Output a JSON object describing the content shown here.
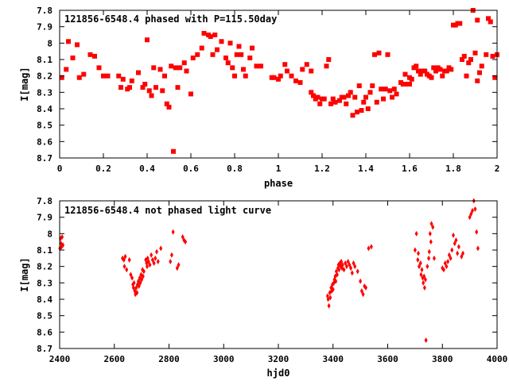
{
  "colors": {
    "points": "#ff0000",
    "axes": "#000000",
    "background": "#ffffff"
  },
  "chart_data": [
    {
      "type": "scatter",
      "title": "121856-6548.4 phased with P=115.50day",
      "xlabel": "phase",
      "ylabel": "I[mag]",
      "xlim": [
        0,
        2
      ],
      "ylim": [
        8.7,
        7.8
      ],
      "y_inverted": true,
      "grid": false,
      "marker": "filled-square",
      "x_ticks": [
        "0",
        "0.2",
        "0.4",
        "0.6",
        "0.8",
        "1",
        "1.2",
        "1.4",
        "1.6",
        "1.8",
        "2"
      ],
      "y_ticks": [
        "7.8",
        "7.9",
        "8",
        "8.1",
        "8.2",
        "8.3",
        "8.4",
        "8.5",
        "8.6",
        "8.7"
      ],
      "points": [
        [
          0.01,
          8.21
        ],
        [
          0.03,
          8.16
        ],
        [
          0.04,
          7.99
        ],
        [
          0.06,
          8.09
        ],
        [
          0.08,
          8.01
        ],
        [
          0.09,
          8.21
        ],
        [
          0.11,
          8.19
        ],
        [
          0.14,
          8.07
        ],
        [
          0.16,
          8.08
        ],
        [
          0.18,
          8.15
        ],
        [
          0.2,
          8.2
        ],
        [
          0.22,
          8.2
        ],
        [
          0.27,
          8.2
        ],
        [
          0.28,
          8.27
        ],
        [
          0.29,
          8.22
        ],
        [
          0.31,
          8.28
        ],
        [
          0.32,
          8.27
        ],
        [
          0.33,
          8.23
        ],
        [
          0.36,
          8.18
        ],
        [
          0.38,
          8.27
        ],
        [
          0.39,
          8.25
        ],
        [
          0.4,
          7.98
        ],
        [
          0.41,
          8.29
        ],
        [
          0.42,
          8.32
        ],
        [
          0.43,
          8.15
        ],
        [
          0.44,
          8.27
        ],
        [
          0.46,
          8.16
        ],
        [
          0.47,
          8.29
        ],
        [
          0.48,
          8.2
        ],
        [
          0.49,
          8.37
        ],
        [
          0.5,
          8.39
        ],
        [
          0.51,
          8.14
        ],
        [
          0.52,
          8.66
        ],
        [
          0.53,
          8.15
        ],
        [
          0.54,
          8.27
        ],
        [
          0.55,
          8.15
        ],
        [
          0.57,
          8.12
        ],
        [
          0.58,
          8.17
        ],
        [
          0.6,
          8.31
        ],
        [
          0.61,
          8.09
        ],
        [
          0.63,
          8.07
        ],
        [
          0.65,
          8.03
        ],
        [
          0.66,
          7.94
        ],
        [
          0.68,
          7.95
        ],
        [
          0.69,
          7.96
        ],
        [
          0.7,
          8.07
        ],
        [
          0.71,
          7.95
        ],
        [
          0.72,
          8.04
        ],
        [
          0.74,
          7.99
        ],
        [
          0.76,
          8.09
        ],
        [
          0.77,
          8.12
        ],
        [
          0.78,
          8.0
        ],
        [
          0.79,
          8.15
        ],
        [
          0.8,
          8.2
        ],
        [
          0.81,
          8.07
        ],
        [
          0.82,
          8.02
        ],
        [
          0.83,
          8.07
        ],
        [
          0.84,
          8.16
        ],
        [
          0.87,
          8.09
        ],
        [
          0.88,
          8.03
        ],
        [
          0.9,
          8.14
        ],
        [
          0.92,
          8.14
        ],
        [
          0.97,
          8.21
        ],
        [
          0.98,
          8.21
        ],
        [
          1.0,
          8.22
        ],
        [
          1.01,
          8.2
        ],
        [
          1.03,
          8.13
        ],
        [
          1.04,
          8.17
        ],
        [
          1.06,
          8.2
        ],
        [
          1.08,
          8.23
        ],
        [
          1.1,
          8.24
        ],
        [
          1.11,
          8.16
        ],
        [
          1.13,
          8.13
        ],
        [
          1.15,
          8.17
        ],
        [
          1.16,
          8.32
        ],
        [
          1.17,
          8.34
        ],
        [
          1.18,
          8.33
        ],
        [
          1.19,
          8.37
        ],
        [
          1.2,
          8.34
        ],
        [
          1.21,
          8.34
        ],
        [
          1.22,
          8.14
        ],
        [
          1.23,
          8.1
        ],
        [
          1.24,
          8.37
        ],
        [
          1.25,
          8.34
        ],
        [
          1.26,
          8.36
        ],
        [
          1.28,
          8.35
        ],
        [
          1.29,
          8.33
        ],
        [
          1.3,
          8.33
        ],
        [
          1.31,
          8.37
        ],
        [
          1.32,
          8.32
        ],
        [
          1.33,
          8.3
        ],
        [
          1.34,
          8.44
        ],
        [
          1.35,
          8.33
        ],
        [
          1.36,
          8.42
        ],
        [
          1.37,
          8.26
        ],
        [
          1.38,
          8.41
        ],
        [
          1.39,
          8.36
        ],
        [
          1.4,
          8.33
        ],
        [
          1.41,
          8.4
        ],
        [
          1.42,
          8.3
        ],
        [
          1.43,
          8.26
        ],
        [
          1.44,
          8.07
        ],
        [
          1.45,
          8.36
        ],
        [
          1.46,
          8.06
        ],
        [
          1.47,
          8.28
        ],
        [
          1.48,
          8.34
        ],
        [
          1.49,
          8.28
        ],
        [
          1.5,
          8.07
        ],
        [
          1.51,
          8.29
        ],
        [
          1.52,
          8.33
        ],
        [
          1.53,
          8.28
        ],
        [
          1.54,
          8.31
        ],
        [
          1.56,
          8.24
        ],
        [
          1.57,
          8.25
        ],
        [
          1.58,
          8.19
        ],
        [
          1.59,
          8.25
        ],
        [
          1.6,
          8.21
        ],
        [
          1.61,
          8.22
        ],
        [
          1.62,
          8.15
        ],
        [
          1.63,
          8.14
        ],
        [
          1.64,
          8.17
        ],
        [
          1.65,
          8.19
        ],
        [
          1.66,
          8.17
        ],
        [
          1.67,
          8.17
        ],
        [
          1.68,
          8.19
        ],
        [
          1.69,
          8.2
        ],
        [
          1.7,
          8.21
        ],
        [
          1.71,
          8.15
        ],
        [
          1.72,
          8.17
        ],
        [
          1.73,
          8.15
        ],
        [
          1.74,
          8.16
        ],
        [
          1.75,
          8.2
        ],
        [
          1.76,
          8.17
        ],
        [
          1.77,
          8.17
        ],
        [
          1.78,
          8.15
        ],
        [
          1.79,
          8.16
        ],
        [
          1.8,
          7.89
        ],
        [
          1.81,
          7.89
        ],
        [
          1.82,
          7.88
        ],
        [
          1.83,
          7.88
        ],
        [
          1.84,
          8.1
        ],
        [
          1.85,
          8.08
        ],
        [
          1.86,
          8.2
        ],
        [
          1.87,
          8.12
        ],
        [
          1.88,
          8.1
        ],
        [
          1.89,
          7.8
        ],
        [
          1.9,
          8.06
        ],
        [
          1.91,
          8.23
        ],
        [
          1.92,
          8.18
        ],
        [
          1.93,
          8.14
        ],
        [
          1.95,
          8.07
        ],
        [
          1.96,
          7.85
        ],
        [
          1.97,
          7.87
        ],
        [
          1.98,
          8.08
        ],
        [
          2.0,
          8.07
        ],
        [
          1.91,
          7.86
        ],
        [
          1.99,
          8.21
        ],
        [
          1.6,
          8.25
        ],
        [
          1.15,
          8.3
        ],
        [
          0.85,
          8.2
        ]
      ]
    },
    {
      "type": "scatter",
      "title": "121856-6548.4 not phased light curve",
      "xlabel": "hjd0",
      "ylabel": "I[mag]",
      "xlim": [
        2400,
        4000
      ],
      "ylim": [
        8.7,
        7.8
      ],
      "y_inverted": true,
      "grid": false,
      "marker": "filled-diamond",
      "x_ticks": [
        "2400",
        "2600",
        "2800",
        "3000",
        "3200",
        "3400",
        "3600",
        "3800",
        "4000"
      ],
      "y_ticks": [
        "7.8",
        "7.9",
        "8",
        "8.1",
        "8.2",
        "8.3",
        "8.4",
        "8.5",
        "8.6",
        "8.7"
      ],
      "points": [
        [
          2401,
          8.09
        ],
        [
          2403,
          8.03
        ],
        [
          2405,
          8.06
        ],
        [
          2407,
          8.08
        ],
        [
          2409,
          8.02
        ],
        [
          2412,
          8.07
        ],
        [
          2630,
          8.15
        ],
        [
          2635,
          8.16
        ],
        [
          2637,
          8.2
        ],
        [
          2640,
          8.14
        ],
        [
          2645,
          8.22
        ],
        [
          2655,
          8.16
        ],
        [
          2660,
          8.25
        ],
        [
          2665,
          8.27
        ],
        [
          2668,
          8.31
        ],
        [
          2670,
          8.33
        ],
        [
          2672,
          8.3
        ],
        [
          2675,
          8.35
        ],
        [
          2677,
          8.37
        ],
        [
          2680,
          8.33
        ],
        [
          2683,
          8.36
        ],
        [
          2685,
          8.31
        ],
        [
          2688,
          8.29
        ],
        [
          2690,
          8.32
        ],
        [
          2693,
          8.27
        ],
        [
          2695,
          8.3
        ],
        [
          2698,
          8.25
        ],
        [
          2700,
          8.28
        ],
        [
          2703,
          8.22
        ],
        [
          2705,
          8.26
        ],
        [
          2708,
          8.23
        ],
        [
          2715,
          8.16
        ],
        [
          2718,
          8.18
        ],
        [
          2720,
          8.2
        ],
        [
          2722,
          8.15
        ],
        [
          2725,
          8.17
        ],
        [
          2730,
          8.19
        ],
        [
          2735,
          8.13
        ],
        [
          2740,
          8.16
        ],
        [
          2745,
          8.18
        ],
        [
          2750,
          8.15
        ],
        [
          2755,
          8.11
        ],
        [
          2760,
          8.17
        ],
        [
          2770,
          8.09
        ],
        [
          2805,
          8.17
        ],
        [
          2810,
          8.13
        ],
        [
          2815,
          7.99
        ],
        [
          2830,
          8.21
        ],
        [
          2835,
          8.19
        ],
        [
          2850,
          8.02
        ],
        [
          2855,
          8.04
        ],
        [
          2860,
          8.05
        ],
        [
          3380,
          8.38
        ],
        [
          3382,
          8.4
        ],
        [
          3385,
          8.44
        ],
        [
          3388,
          8.36
        ],
        [
          3390,
          8.39
        ],
        [
          3393,
          8.33
        ],
        [
          3395,
          8.35
        ],
        [
          3398,
          8.31
        ],
        [
          3400,
          8.34
        ],
        [
          3403,
          8.3
        ],
        [
          3405,
          8.28
        ],
        [
          3408,
          8.26
        ],
        [
          3410,
          8.29
        ],
        [
          3412,
          8.23
        ],
        [
          3415,
          8.25
        ],
        [
          3418,
          8.21
        ],
        [
          3420,
          8.19
        ],
        [
          3422,
          8.22
        ],
        [
          3425,
          8.18
        ],
        [
          3428,
          8.2
        ],
        [
          3430,
          8.17
        ],
        [
          3433,
          8.21
        ],
        [
          3435,
          8.19
        ],
        [
          3440,
          8.22
        ],
        [
          3445,
          8.18
        ],
        [
          3450,
          8.2
        ],
        [
          3455,
          8.17
        ],
        [
          3460,
          8.19
        ],
        [
          3465,
          8.21
        ],
        [
          3470,
          8.24
        ],
        [
          3475,
          8.18
        ],
        [
          3480,
          8.2
        ],
        [
          3490,
          8.23
        ],
        [
          3500,
          8.29
        ],
        [
          3505,
          8.35
        ],
        [
          3510,
          8.37
        ],
        [
          3515,
          8.32
        ],
        [
          3520,
          8.33
        ],
        [
          3530,
          8.09
        ],
        [
          3540,
          8.08
        ],
        [
          3700,
          8.1
        ],
        [
          3705,
          8.0
        ],
        [
          3710,
          8.16
        ],
        [
          3712,
          8.12
        ],
        [
          3715,
          8.2
        ],
        [
          3720,
          8.18
        ],
        [
          3722,
          8.25
        ],
        [
          3725,
          8.22
        ],
        [
          3728,
          8.27
        ],
        [
          3730,
          8.3
        ],
        [
          3733,
          8.26
        ],
        [
          3735,
          8.33
        ],
        [
          3738,
          8.28
        ],
        [
          3740,
          8.65
        ],
        [
          3745,
          8.2
        ],
        [
          3750,
          8.15
        ],
        [
          3752,
          8.11
        ],
        [
          3755,
          8.0
        ],
        [
          3758,
          8.05
        ],
        [
          3760,
          7.94
        ],
        [
          3765,
          7.96
        ],
        [
          3770,
          8.15
        ],
        [
          3800,
          8.21
        ],
        [
          3805,
          8.22
        ],
        [
          3810,
          8.18
        ],
        [
          3815,
          8.2
        ],
        [
          3820,
          8.17
        ],
        [
          3825,
          8.13
        ],
        [
          3830,
          8.15
        ],
        [
          3835,
          8.1
        ],
        [
          3840,
          8.01
        ],
        [
          3845,
          8.06
        ],
        [
          3850,
          8.04
        ],
        [
          3855,
          8.12
        ],
        [
          3860,
          8.08
        ],
        [
          3870,
          8.14
        ],
        [
          3875,
          8.12
        ],
        [
          3900,
          7.9
        ],
        [
          3905,
          7.88
        ],
        [
          3910,
          7.86
        ],
        [
          3915,
          7.8
        ],
        [
          3920,
          7.85
        ],
        [
          3925,
          7.99
        ],
        [
          3930,
          8.09
        ]
      ]
    }
  ]
}
